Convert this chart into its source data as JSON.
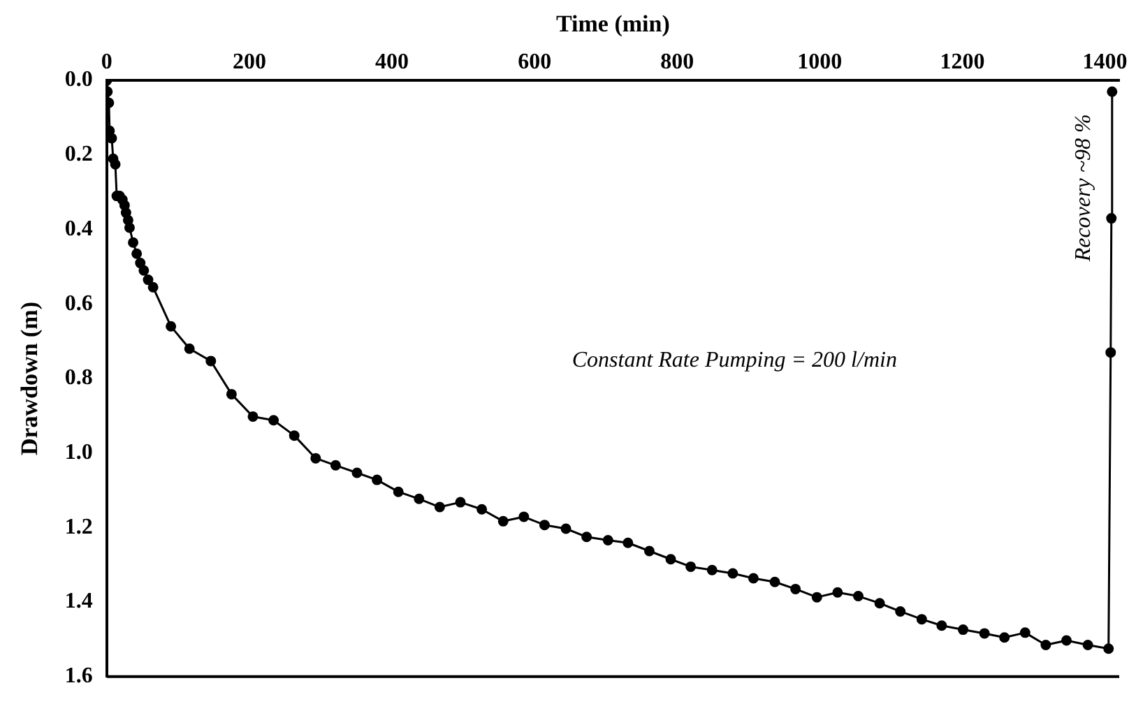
{
  "chart_data": {
    "type": "line",
    "xlabel": "Time (min)",
    "ylabel": "Drawdown (m)",
    "xlim": [
      0,
      1420
    ],
    "xticks": [
      0,
      200,
      400,
      600,
      800,
      1000,
      1200,
      1400
    ],
    "ylim": [
      1.6,
      0
    ],
    "yticks": [
      {
        "value": 0,
        "label": "0.0"
      },
      {
        "value": 0.2,
        "label": "0.2"
      },
      {
        "value": 0.4,
        "label": "0.4"
      },
      {
        "value": 0.6,
        "label": "0.6"
      },
      {
        "value": 0.8,
        "label": "0.8"
      },
      {
        "value": 1.0,
        "label": "1.0"
      },
      {
        "value": 1.2,
        "label": "1.2"
      },
      {
        "value": 1.4,
        "label": "1.4"
      },
      {
        "value": 1.6,
        "label": "1.6"
      }
    ],
    "x": [
      0,
      1,
      3,
      4,
      7,
      9,
      12,
      14,
      18,
      22,
      25,
      27,
      30,
      32,
      37,
      42,
      47,
      52,
      58,
      65,
      90,
      116,
      146,
      175,
      205,
      234,
      263,
      293,
      321,
      351,
      379,
      409,
      438,
      467,
      496,
      526,
      556,
      585,
      614,
      644,
      673,
      703,
      731,
      761,
      791,
      819,
      849,
      878,
      907,
      937,
      966,
      996,
      1025,
      1054,
      1084,
      1113,
      1143,
      1171,
      1201,
      1231,
      1259,
      1288,
      1317,
      1346,
      1376,
      1405,
      1408,
      1409,
      1410
    ],
    "series": [
      {
        "color": "#000000",
        "values": [
          0,
          0.03,
          0.06,
          0.135,
          0.155,
          0.21,
          0.225,
          0.31,
          0.31,
          0.32,
          0.335,
          0.355,
          0.375,
          0.395,
          0.435,
          0.465,
          0.49,
          0.51,
          0.535,
          0.555,
          0.66,
          0.72,
          0.753,
          0.842,
          0.902,
          0.912,
          0.953,
          1.014,
          1.033,
          1.053,
          1.072,
          1.104,
          1.123,
          1.145,
          1.132,
          1.151,
          1.183,
          1.171,
          1.193,
          1.203,
          1.225,
          1.234,
          1.241,
          1.263,
          1.285,
          1.305,
          1.314,
          1.323,
          1.336,
          1.346,
          1.365,
          1.387,
          1.374,
          1.384,
          1.403,
          1.425,
          1.446,
          1.463,
          1.474,
          1.484,
          1.495,
          1.482,
          1.515,
          1.503,
          1.515,
          1.525,
          0.73,
          0.37,
          0.03
        ]
      }
    ],
    "marker": "circle",
    "line_style": "solid",
    "grid": false,
    "legend": false,
    "annotations": [
      "Constant Rate Pumping = 200 l/min",
      "Recovery ~98 %"
    ]
  }
}
